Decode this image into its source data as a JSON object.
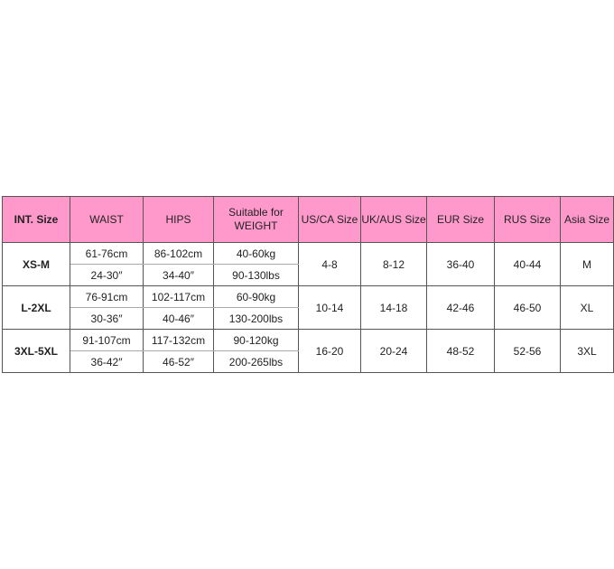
{
  "header_color": "#ff99cc",
  "headers": [
    "INT. Size",
    "WAIST",
    "HIPS",
    "Suitable for WEIGHT",
    "US/CA Size",
    "UK/AUS Size",
    "EUR Size",
    "RUS Size",
    "Asia Size"
  ],
  "rows": [
    {
      "int": "XS-M",
      "waist_cm": "61-76cm",
      "waist_in": "24-30″",
      "hips_cm": "86-102cm",
      "hips_in": "34-40″",
      "weight_kg": "40-60kg",
      "weight_lbs": "90-130lbs",
      "us": "4-8",
      "uk": "8-12",
      "eur": "36-40",
      "rus": "40-44",
      "asia": "M"
    },
    {
      "int": "L-2XL",
      "waist_cm": "76-91cm",
      "waist_in": "30-36″",
      "hips_cm": "102-117cm",
      "hips_in": "40-46″",
      "weight_kg": "60-90kg",
      "weight_lbs": "130-200lbs",
      "us": "10-14",
      "uk": "14-18",
      "eur": "42-46",
      "rus": "46-50",
      "asia": "XL"
    },
    {
      "int": "3XL-5XL",
      "waist_cm": "91-107cm",
      "waist_in": "36-42″",
      "hips_cm": "117-132cm",
      "hips_in": "46-52″",
      "weight_kg": "90-120kg",
      "weight_lbs": "200-265lbs",
      "us": "16-20",
      "uk": "20-24",
      "eur": "48-52",
      "rus": "52-56",
      "asia": "3XL"
    }
  ]
}
